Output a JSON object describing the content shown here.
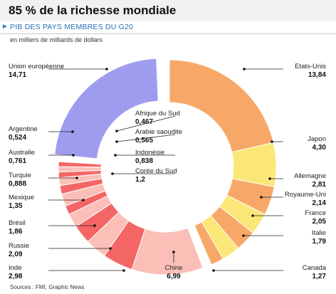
{
  "header": {
    "title": "85 % de la richesse mondiale",
    "subtitle": "PIB DES PAYS MEMBRES DU G20",
    "unit_note": "en milliers de milliards de dollars"
  },
  "source": "Sources : FMI, Graphic News",
  "chart_data": {
    "type": "pie",
    "variant": "donut",
    "title": "85 % de la richesse mondiale",
    "subtitle": "PIB DES PAYS MEMBRES DU G20",
    "unit": "en milliers de milliards de dollars",
    "slices": [
      {
        "name": "Etats-Unis",
        "label": "13,84",
        "value": 13.84,
        "color": "#f7a868"
      },
      {
        "name": "Japon",
        "label": "4,30",
        "value": 4.3,
        "color": "#fbe777"
      },
      {
        "name": "Allemagne",
        "label": "2,81",
        "value": 2.81,
        "color": "#f7a868"
      },
      {
        "name": "Royaume-Uni",
        "label": "2,14",
        "value": 2.14,
        "color": "#fbe777"
      },
      {
        "name": "France",
        "label": "2,05",
        "value": 2.05,
        "color": "#f7a868"
      },
      {
        "name": "Italie",
        "label": "1,79",
        "value": 1.79,
        "color": "#fbe777"
      },
      {
        "name": "Canada",
        "label": "1,27",
        "value": 1.27,
        "color": "#f7a868"
      },
      {
        "name": "Chine",
        "label": "6,99",
        "value": 6.99,
        "color": "#fbbfb7"
      },
      {
        "name": "Inde",
        "label": "2,98",
        "value": 2.98,
        "color": "#f46666"
      },
      {
        "name": "Russie",
        "label": "2,09",
        "value": 2.09,
        "color": "#fbbfb7"
      },
      {
        "name": "Brésil",
        "label": "1,86",
        "value": 1.86,
        "color": "#f46666"
      },
      {
        "name": "Mexique",
        "label": "1,35",
        "value": 1.35,
        "color": "#fbbfb7"
      },
      {
        "name": "Turquie",
        "label": "0,888",
        "value": 0.888,
        "color": "#f46666"
      },
      {
        "name": "Corée du Sud",
        "label": "1,2",
        "value": 1.2,
        "color": "#fbbfb7"
      },
      {
        "name": "Indonésie",
        "label": "0,838",
        "value": 0.838,
        "color": "#f46666"
      },
      {
        "name": "Australie",
        "label": "0,761",
        "value": 0.761,
        "color": "#fbbfb7"
      },
      {
        "name": "Arabie saoudite",
        "label": "0,565",
        "value": 0.565,
        "color": "#f46666"
      },
      {
        "name": "Argentine",
        "label": "0,524",
        "value": 0.524,
        "color": "#fbbfb7"
      },
      {
        "name": "Afrique du Sud",
        "label": "0,467",
        "value": 0.467,
        "color": "#f46666"
      },
      {
        "name": "Union européenne",
        "label": "14,71",
        "value": 14.71,
        "color": "#9f9cf0"
      }
    ],
    "colors": {
      "americas_europe_japan_orange": "#f7a868",
      "americas_europe_japan_yellow": "#fbe777",
      "emerging_red": "#f46666",
      "emerging_pink": "#fbbfb7",
      "eu_purple": "#9f9cf0",
      "accent_blue": "#2b6fb3"
    }
  }
}
